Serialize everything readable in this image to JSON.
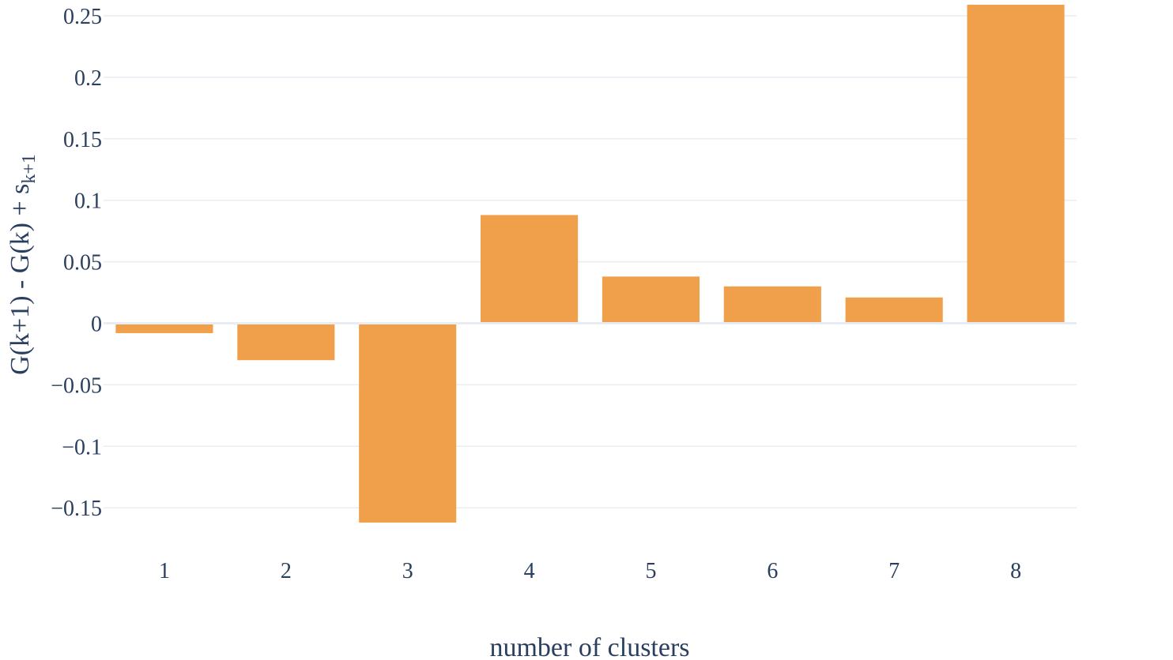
{
  "chart_data": {
    "type": "bar",
    "title": "",
    "xlabel": "number of clusters",
    "ylabel": {
      "main": "G(k+1) - G(k) + s",
      "subscript": "k+1"
    },
    "categories": [
      "1",
      "2",
      "3",
      "4",
      "5",
      "6",
      "7",
      "8"
    ],
    "values": [
      -0.008,
      -0.03,
      -0.162,
      0.088,
      0.038,
      0.03,
      0.021,
      0.259
    ],
    "ylim": [
      -0.18,
      0.26
    ],
    "yticks": [
      0.25,
      0.2,
      0.15,
      0.1,
      0.05,
      0,
      -0.05,
      -0.1,
      -0.15
    ],
    "ytick_labels": [
      "0.25",
      "0.2",
      "0.15",
      "0.1",
      "0.05",
      "0",
      "−0.05",
      "−0.1",
      "−0.15"
    ],
    "grid": true,
    "legend": false,
    "colors": {
      "bar": "#f0a04b",
      "text": "#2a3f5f",
      "grid": "#e8ecf3",
      "zeroline": "#e8ecf3"
    }
  }
}
